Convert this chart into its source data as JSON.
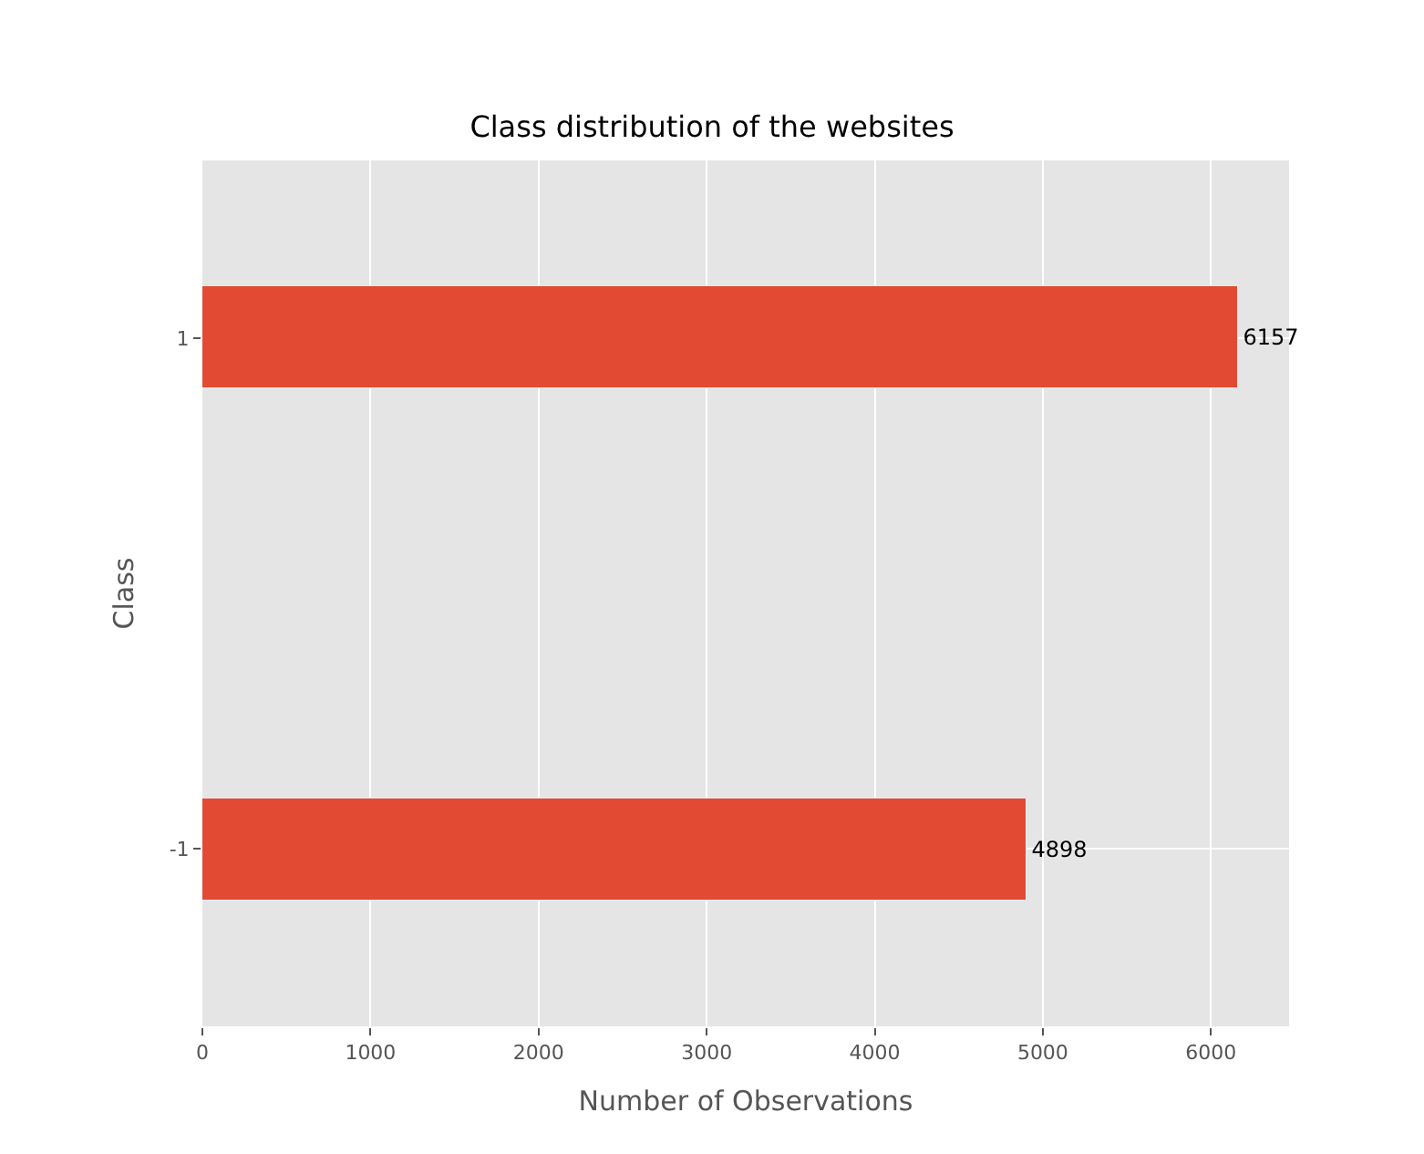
{
  "chart_data": {
    "type": "bar",
    "orientation": "horizontal",
    "title": "Class distribution of the websites",
    "xlabel": "Number of Observations",
    "ylabel": "Class",
    "categories": [
      "1",
      "-1"
    ],
    "values": [
      6157,
      4898
    ],
    "color": "#e24a33",
    "xlim": [
      0,
      6465
    ],
    "xticks": [
      0,
      1000,
      2000,
      3000,
      4000,
      5000,
      6000
    ],
    "grid": true,
    "data_labels": true
  }
}
